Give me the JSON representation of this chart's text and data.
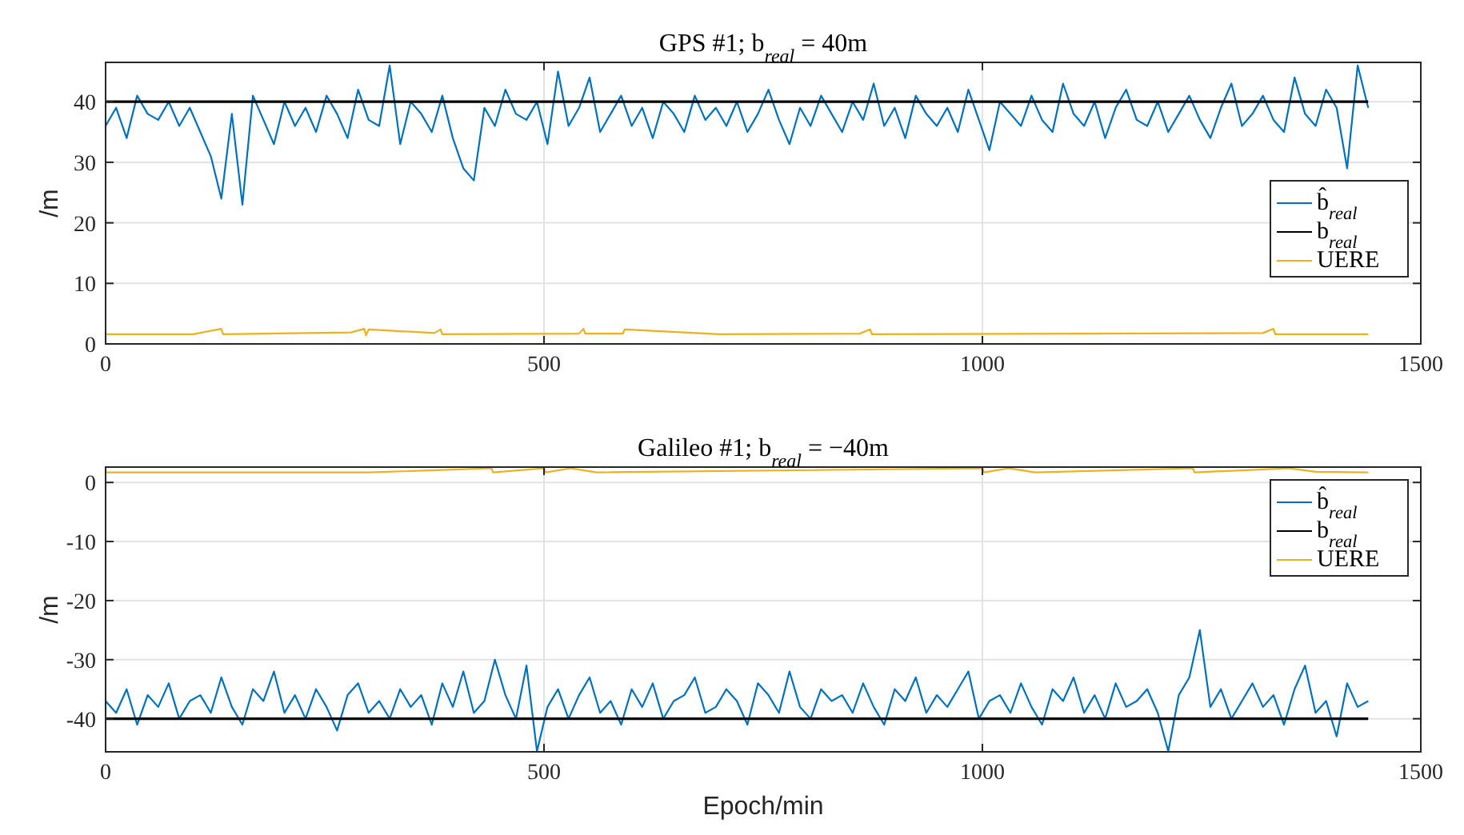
{
  "chart_data": [
    {
      "type": "line",
      "title": "GPS #1; b$_{real}$ = 40m",
      "ylabel": "/m",
      "xlim": [
        0,
        1500
      ],
      "xticks": [
        0,
        500,
        1000,
        1500
      ],
      "ylim": [
        0,
        46.5
      ],
      "yticks": [
        0,
        10,
        20,
        30,
        40
      ],
      "grid": true,
      "legend": "right",
      "x": [
        0,
        12,
        24,
        36,
        48,
        60,
        72,
        84,
        96,
        108,
        120,
        132,
        144,
        156,
        168,
        180,
        192,
        204,
        216,
        228,
        240,
        252,
        264,
        276,
        288,
        300,
        312,
        324,
        336,
        348,
        360,
        372,
        384,
        396,
        408,
        420,
        432,
        444,
        456,
        468,
        480,
        492,
        504,
        516,
        528,
        540,
        552,
        564,
        576,
        588,
        600,
        612,
        624,
        636,
        648,
        660,
        672,
        684,
        696,
        708,
        720,
        732,
        744,
        756,
        768,
        780,
        792,
        804,
        816,
        828,
        840,
        852,
        864,
        876,
        888,
        900,
        912,
        924,
        936,
        948,
        960,
        972,
        984,
        996,
        1008,
        1020,
        1032,
        1044,
        1056,
        1068,
        1080,
        1092,
        1104,
        1116,
        1128,
        1140,
        1152,
        1164,
        1176,
        1188,
        1200,
        1212,
        1224,
        1236,
        1248,
        1260,
        1272,
        1284,
        1296,
        1308,
        1320,
        1332,
        1344,
        1356,
        1368,
        1380,
        1392,
        1404,
        1416,
        1428,
        1440
      ],
      "series": [
        {
          "name": "b̂$_{real}$",
          "color": "#0072bd",
          "values": [
            36,
            39,
            34,
            41,
            38,
            37,
            40,
            36,
            39,
            35,
            31,
            24,
            38,
            23,
            41,
            37,
            33,
            40,
            36,
            39,
            35,
            41,
            38,
            34,
            42,
            37,
            36,
            46,
            33,
            40,
            38,
            35,
            41,
            34,
            29,
            27,
            39,
            36,
            42,
            38,
            37,
            40,
            33,
            45,
            36,
            39,
            44,
            35,
            38,
            41,
            36,
            39,
            34,
            40,
            38,
            35,
            41,
            37,
            39,
            36,
            40,
            35,
            38,
            42,
            37,
            33,
            39,
            36,
            41,
            38,
            35,
            40,
            37,
            43,
            36,
            39,
            34,
            41,
            38,
            36,
            39,
            35,
            42,
            37,
            32,
            40,
            38,
            36,
            41,
            37,
            35,
            43,
            38,
            36,
            40,
            34,
            39,
            42,
            37,
            36,
            40,
            35,
            38,
            41,
            37,
            34,
            39,
            43,
            36,
            38,
            41,
            37,
            35,
            44,
            38,
            36,
            42,
            39,
            29,
            46,
            39
          ]
        },
        {
          "name": "b$_{real}$",
          "color": "#000000",
          "x": [
            0,
            1440
          ],
          "values": [
            40,
            40
          ]
        },
        {
          "name": "UERE",
          "color": "#edb120",
          "x": [
            0,
            100,
            132,
            134,
            280,
            295,
            297,
            300,
            375,
            382,
            384,
            540,
            545,
            547,
            590,
            592,
            700,
            860,
            872,
            874,
            1320,
            1332,
            1334,
            1440
          ],
          "values": [
            1.6,
            1.6,
            2.5,
            1.6,
            1.9,
            2.5,
            1.4,
            2.4,
            1.8,
            2.4,
            1.6,
            1.7,
            2.5,
            1.7,
            1.7,
            2.4,
            1.6,
            1.7,
            2.4,
            1.6,
            1.8,
            2.5,
            1.6,
            1.6
          ]
        }
      ]
    },
    {
      "type": "line",
      "title": "Galileo #1; b$_{real}$ = −40m",
      "xlabel": "Epoch/min",
      "ylabel": "/m",
      "xlim": [
        0,
        1500
      ],
      "xticks": [
        0,
        500,
        1000,
        1500
      ],
      "ylim": [
        -45.6,
        2.6
      ],
      "yticks": [
        -40,
        -30,
        -20,
        -10,
        0
      ],
      "grid": true,
      "legend": "top right",
      "x": [
        0,
        12,
        24,
        36,
        48,
        60,
        72,
        84,
        96,
        108,
        120,
        132,
        144,
        156,
        168,
        180,
        192,
        204,
        216,
        228,
        240,
        252,
        264,
        276,
        288,
        300,
        312,
        324,
        336,
        348,
        360,
        372,
        384,
        396,
        408,
        420,
        432,
        444,
        456,
        468,
        480,
        492,
        504,
        516,
        528,
        540,
        552,
        564,
        576,
        588,
        600,
        612,
        624,
        636,
        648,
        660,
        672,
        684,
        696,
        708,
        720,
        732,
        744,
        756,
        768,
        780,
        792,
        804,
        816,
        828,
        840,
        852,
        864,
        876,
        888,
        900,
        912,
        924,
        936,
        948,
        960,
        972,
        984,
        996,
        1008,
        1020,
        1032,
        1044,
        1056,
        1068,
        1080,
        1092,
        1104,
        1116,
        1128,
        1140,
        1152,
        1164,
        1176,
        1188,
        1200,
        1212,
        1224,
        1236,
        1248,
        1260,
        1272,
        1284,
        1296,
        1308,
        1320,
        1332,
        1344,
        1356,
        1368,
        1380,
        1392,
        1404,
        1416,
        1428,
        1440
      ],
      "series": [
        {
          "name": "b̂$_{real}$",
          "color": "#0072bd",
          "values": [
            -37,
            -39,
            -35,
            -41,
            -36,
            -38,
            -34,
            -40,
            -37,
            -36,
            -39,
            -33,
            -38,
            -41,
            -35,
            -37,
            -32,
            -39,
            -36,
            -40,
            -35,
            -38,
            -42,
            -36,
            -34,
            -39,
            -37,
            -40,
            -35,
            -38,
            -36,
            -41,
            -34,
            -38,
            -32,
            -39,
            -37,
            -30,
            -36,
            -40,
            -31,
            -45.5,
            -38,
            -35,
            -40,
            -36,
            -33,
            -39,
            -37,
            -41,
            -35,
            -38,
            -34,
            -40,
            -37,
            -36,
            -33,
            -39,
            -38,
            -35,
            -37,
            -41,
            -34,
            -36,
            -39,
            -32,
            -38,
            -40,
            -35,
            -37,
            -36,
            -39,
            -34,
            -38,
            -41,
            -35,
            -37,
            -33,
            -39,
            -36,
            -38,
            -35,
            -32,
            -40,
            -37,
            -36,
            -39,
            -34,
            -38,
            -41,
            -35,
            -37,
            -33,
            -39,
            -36,
            -40,
            -34,
            -38,
            -37,
            -35,
            -39,
            -45.5,
            -36,
            -33,
            -25,
            -38,
            -35,
            -40,
            -37,
            -34,
            -38,
            -36,
            -41,
            -35,
            -31,
            -39,
            -37,
            -43,
            -34,
            -38,
            -37
          ]
        },
        {
          "name": "b$_{real}$",
          "color": "#000000",
          "x": [
            0,
            1440
          ],
          "values": [
            -40,
            -40
          ]
        },
        {
          "name": "UERE",
          "color": "#edb120",
          "x": [
            0,
            300,
            440,
            442,
            500,
            502,
            530,
            560,
            1000,
            1002,
            1030,
            1060,
            1240,
            1242,
            1350,
            1380,
            1440
          ],
          "values": [
            1.7,
            1.7,
            2.4,
            1.7,
            2.4,
            1.7,
            2.4,
            1.7,
            2.4,
            1.7,
            2.4,
            1.7,
            2.4,
            1.7,
            2.4,
            1.8,
            1.7
          ]
        }
      ]
    }
  ]
}
